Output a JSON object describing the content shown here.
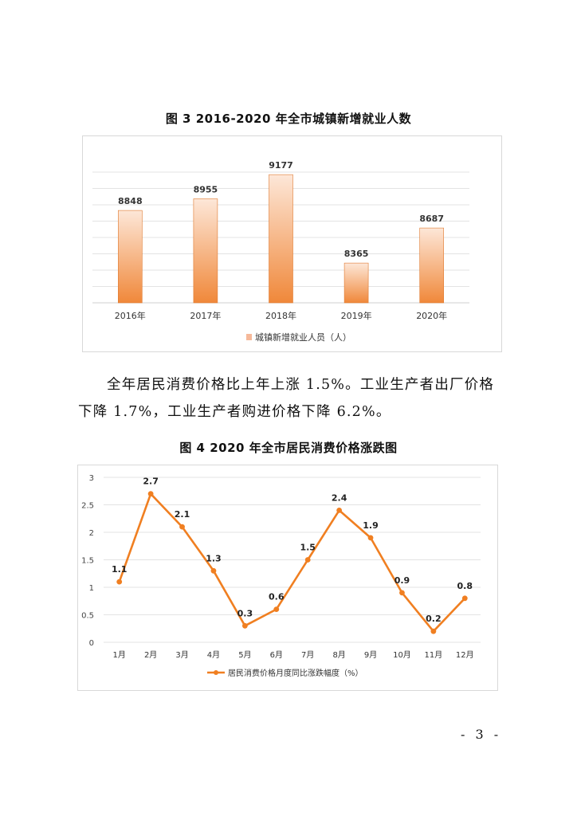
{
  "figure3": {
    "title": "图 3   2016-2020 年全市城镇新增就业人数",
    "chart_data": {
      "type": "bar",
      "title": "图 3   2016-2020 年全市城镇新增就业人数",
      "categories": [
        "2016年",
        "2017年",
        "2018年",
        "2019年",
        "2020年"
      ],
      "series": [
        {
          "name": "城镇新增就业人员（人）",
          "values": [
            8848,
            8955,
            9177,
            8365,
            8687
          ]
        }
      ],
      "ylim": [
        8000,
        9200
      ],
      "grid": true,
      "legend": "bottom-left",
      "colors": {
        "bar_top": "#fde7d8",
        "bar_bottom": "#f0883a",
        "bar_edge": "#e07a30"
      }
    }
  },
  "paragraph": {
    "line1": "全年居民消费价格比上年上涨 1.5%。工业生产者出厂价格",
    "line2": "下降 1.7%，工业生产者购进价格下降 6.2%。"
  },
  "figure4": {
    "title": "图 4   2020 年全市居民消费价格涨跌图",
    "chart_data": {
      "type": "line",
      "title": "图 4   2020 年全市居民消费价格涨跌图",
      "categories": [
        "1月",
        "2月",
        "3月",
        "4月",
        "5月",
        "6月",
        "7月",
        "8月",
        "9月",
        "10月",
        "11月",
        "12月"
      ],
      "series": [
        {
          "name": "居民消费价格月度同比涨跌幅度（%）",
          "values": [
            1.1,
            2.7,
            2.1,
            1.3,
            0.3,
            0.6,
            1.5,
            2.4,
            1.9,
            0.9,
            0.2,
            0.8
          ]
        }
      ],
      "yticks": [
        "0",
        "0.5",
        "1",
        "1.5",
        "2",
        "2.5",
        "3"
      ],
      "ylim": [
        0,
        3
      ],
      "grid": true,
      "legend": "bottom-center",
      "colors": {
        "line": "#f07f21"
      }
    }
  },
  "page_number": "- 3 -"
}
